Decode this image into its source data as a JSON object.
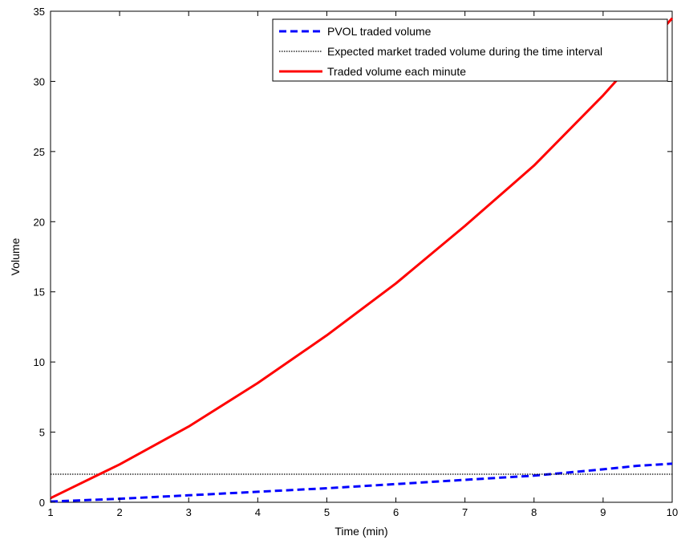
{
  "chart_data": {
    "type": "line",
    "title": "",
    "xlabel": "Time (min)",
    "ylabel": "Volume",
    "xlim": [
      1,
      10
    ],
    "ylim": [
      0,
      35
    ],
    "xticks": [
      1,
      2,
      3,
      4,
      5,
      6,
      7,
      8,
      9,
      10
    ],
    "yticks": [
      0,
      5,
      10,
      15,
      20,
      25,
      30,
      35
    ],
    "grid": false,
    "legend_position": "top-right",
    "series": [
      {
        "name": "PVOL traded volume",
        "color": "#0000ff",
        "style": "dashed",
        "x": [
          1,
          2,
          3,
          4,
          5,
          6,
          7,
          8,
          9,
          9.5,
          10
        ],
        "y": [
          0.05,
          0.25,
          0.5,
          0.75,
          1.0,
          1.3,
          1.6,
          1.9,
          2.35,
          2.6,
          2.75
        ]
      },
      {
        "name": "Expected market traded volume during the time interval",
        "color": "#000000",
        "style": "dotted",
        "x": [
          1,
          10
        ],
        "y": [
          2.0,
          2.0
        ]
      },
      {
        "name": "Traded volume each minute",
        "color": "#ff0000",
        "style": "solid",
        "x": [
          1,
          2,
          3,
          4,
          5,
          6,
          7,
          8,
          9,
          10
        ],
        "y": [
          0.3,
          2.7,
          5.4,
          8.5,
          11.9,
          15.6,
          19.7,
          24.0,
          29.0,
          34.5
        ]
      }
    ]
  }
}
